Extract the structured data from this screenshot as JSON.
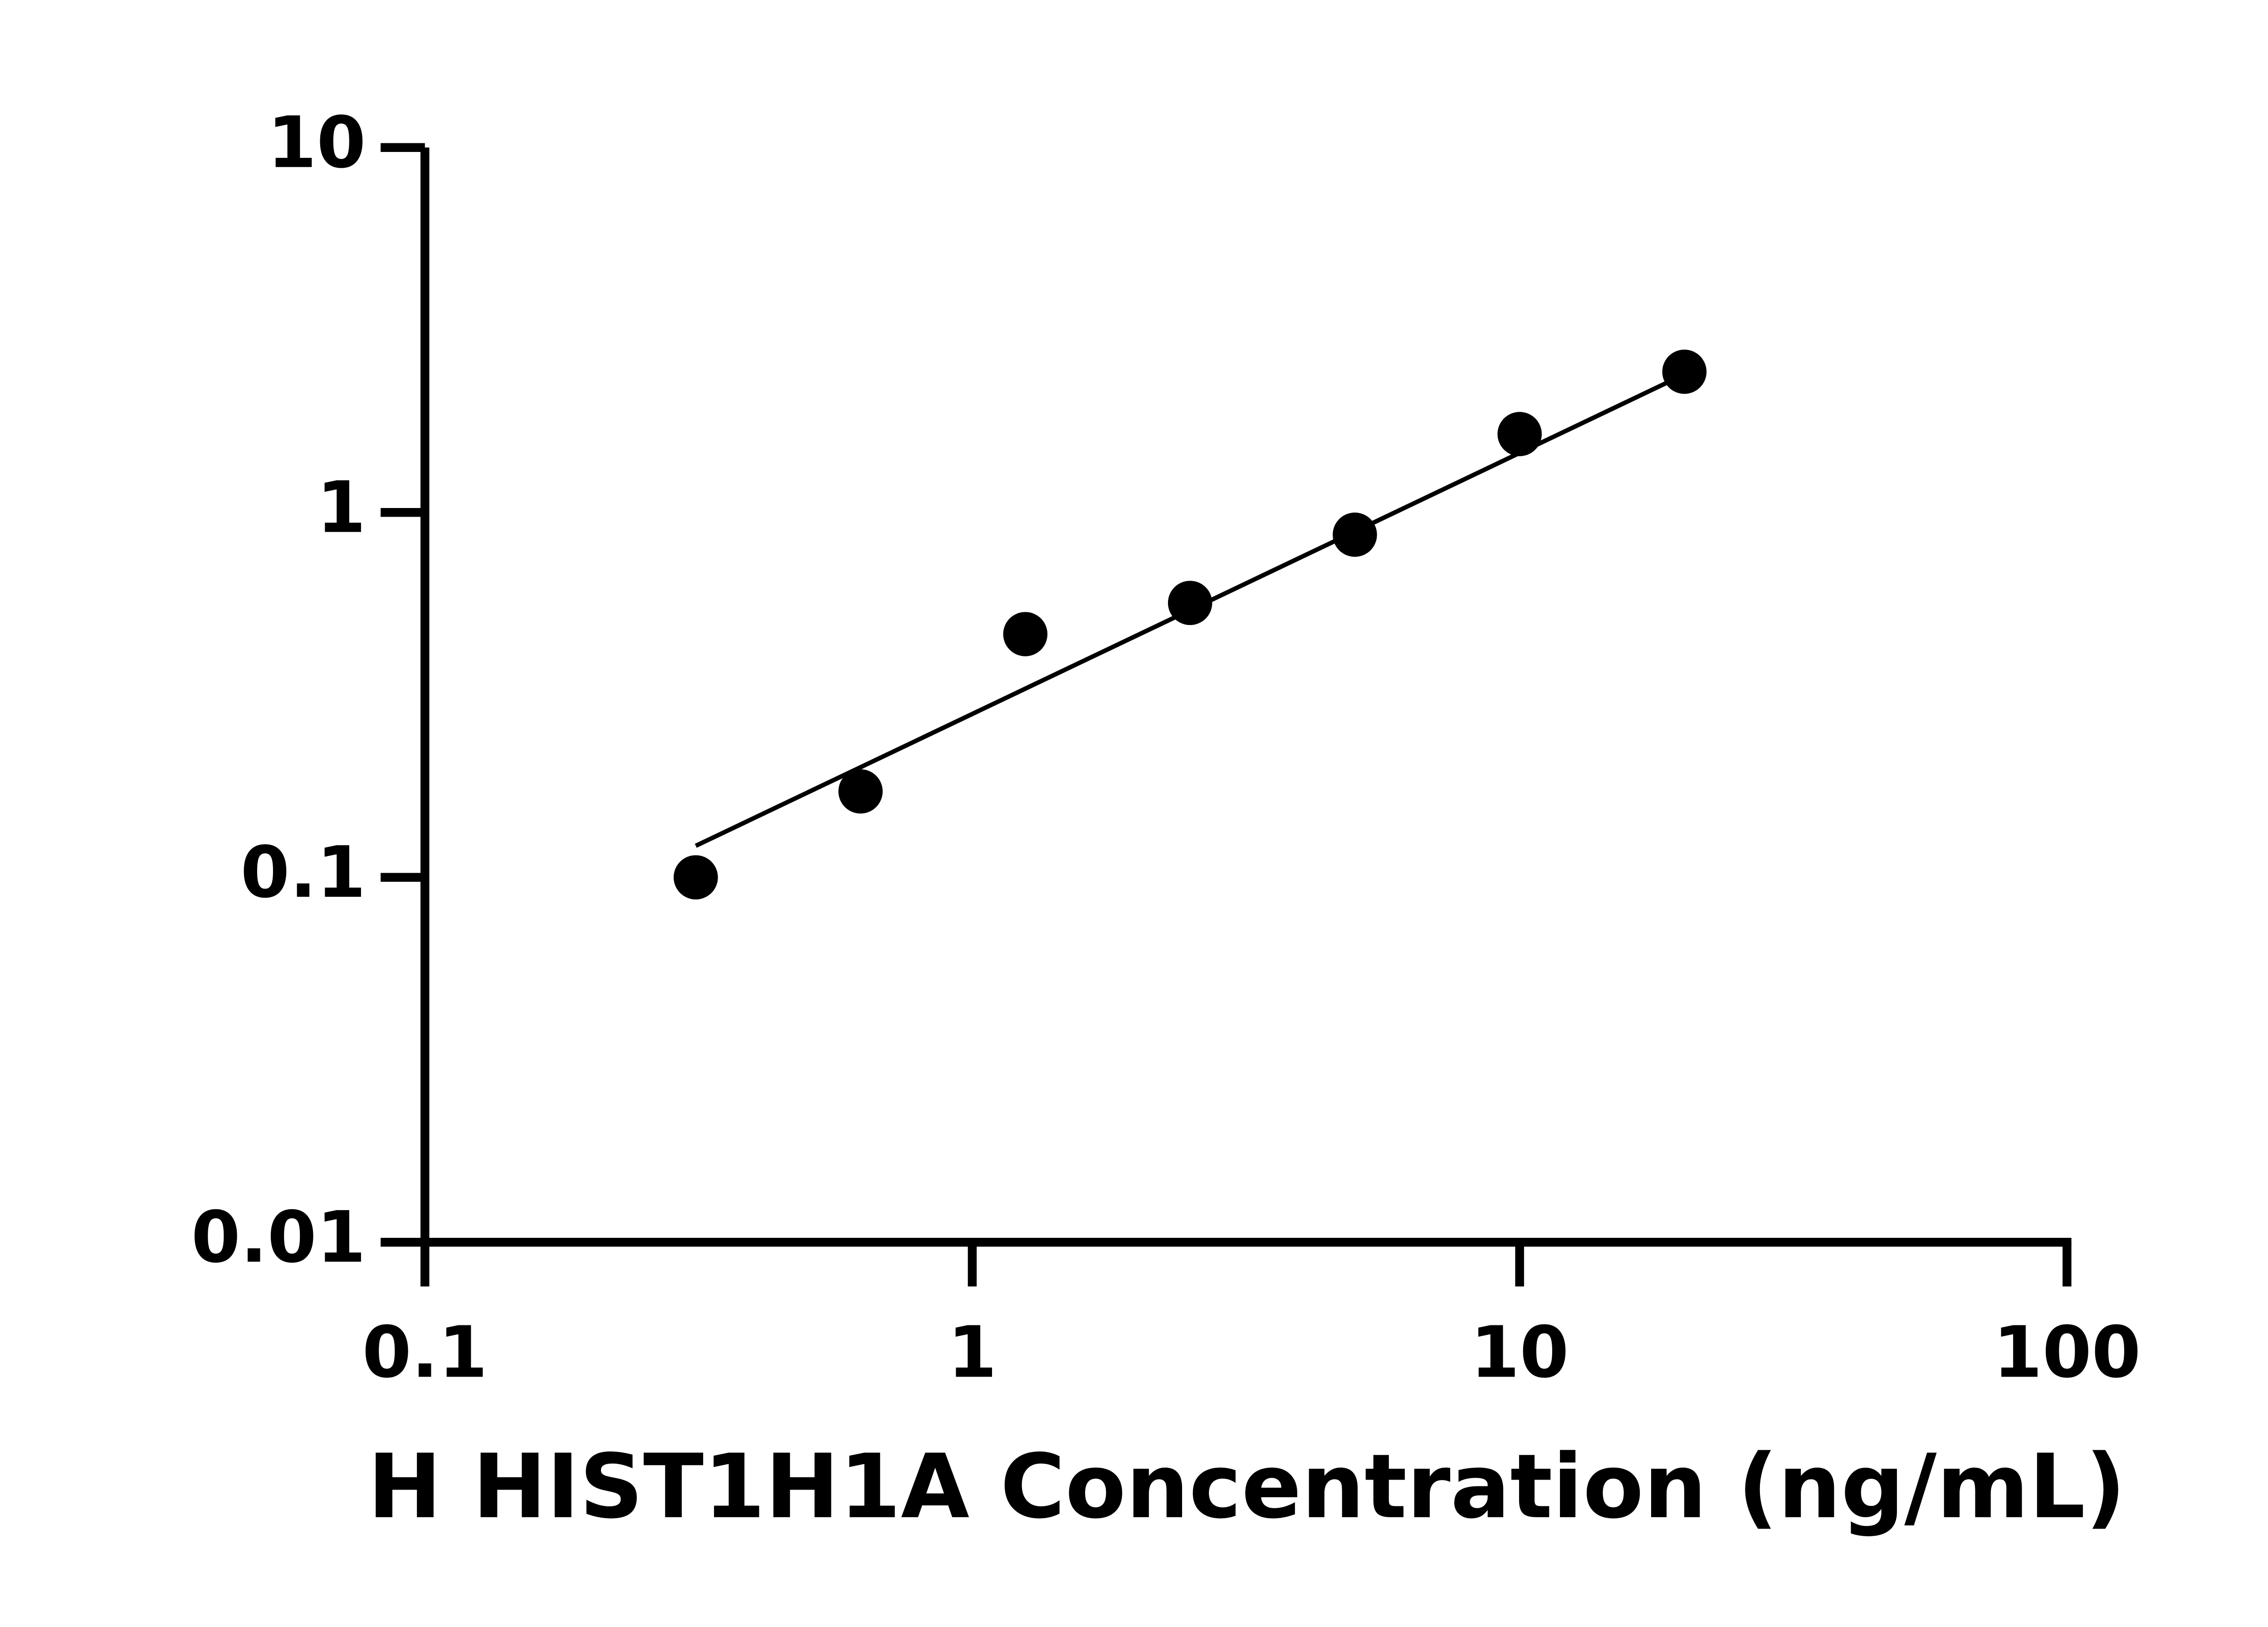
{
  "chart_data": {
    "type": "scatter",
    "x_label": "H HIST1H1A Concentration (ng/mL)",
    "log_x": true,
    "log_y": true,
    "xlim": [
      0.1,
      100
    ],
    "xticks": [
      0.1,
      1,
      10,
      100
    ],
    "ylim": [
      0.01,
      10
    ],
    "yticks": [
      0.01,
      0.1,
      1,
      10
    ],
    "color": "#000000",
    "x": [
      0.3125,
      0.625,
      1.25,
      2.5,
      5,
      10,
      20
    ],
    "values": [
      0.1,
      0.172,
      0.464,
      0.565,
      0.869,
      1.64,
      2.43
    ],
    "fit_line": {
      "x": [
        0.3125,
        20
      ],
      "values": [
        0.122,
        2.39
      ]
    }
  }
}
